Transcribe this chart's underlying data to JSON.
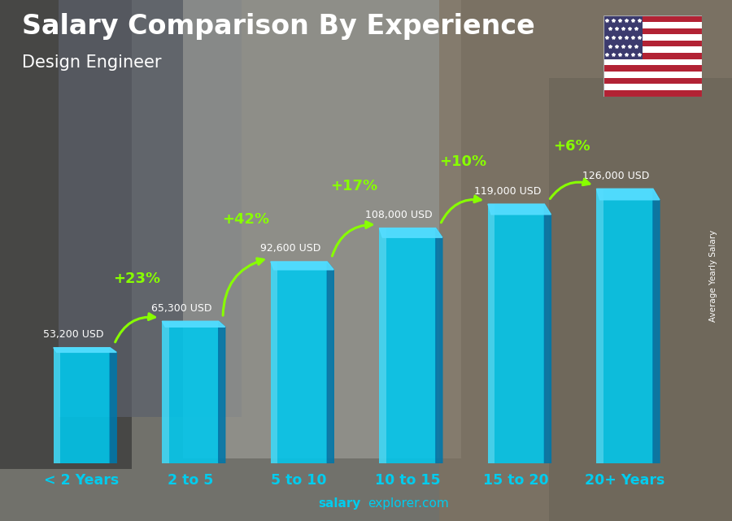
{
  "title": "Salary Comparison By Experience",
  "subtitle": "Design Engineer",
  "categories": [
    "< 2 Years",
    "2 to 5",
    "5 to 10",
    "10 to 15",
    "15 to 20",
    "20+ Years"
  ],
  "values": [
    53200,
    65300,
    92600,
    108000,
    119000,
    126000
  ],
  "salary_labels": [
    "53,200 USD",
    "65,300 USD",
    "92,600 USD",
    "108,000 USD",
    "119,000 USD",
    "126,000 USD"
  ],
  "pct_labels": [
    "+23%",
    "+42%",
    "+17%",
    "+10%",
    "+6%"
  ],
  "bar_face_color": "#00C8EE",
  "bar_side_color": "#0077AA",
  "bar_top_color": "#55DDFF",
  "bar_highlight_color": "#AAEEFF",
  "pct_color": "#88FF00",
  "arrow_color": "#88FF00",
  "salary_label_color": "#FFFFFF",
  "xlabel_color": "#00CCEE",
  "title_color": "#FFFFFF",
  "subtitle_color": "#FFFFFF",
  "ylabel_text": "Average Yearly Salary",
  "footer_bold": "salary",
  "footer_regular": "explorer.com",
  "ylim": [
    0,
    160000
  ],
  "bg_color": "#888888"
}
